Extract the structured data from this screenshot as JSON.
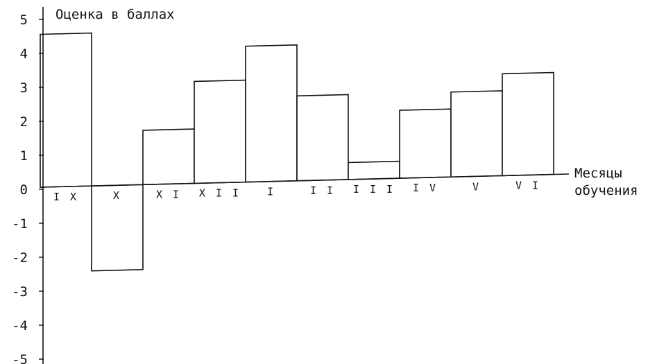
{
  "chart_data": {
    "type": "bar",
    "ylabel": "Оценка в баллах",
    "xlabel_lines": [
      "Месяцы",
      "обучения"
    ],
    "ylim": [
      -5,
      5
    ],
    "yticks": [
      5,
      4,
      3,
      2,
      1,
      0,
      -1,
      -2,
      -3,
      -4,
      -5
    ],
    "ytick_labels": [
      "5",
      "4",
      "3",
      "2",
      "1",
      "0",
      "-1",
      "-2",
      "-3",
      "-4",
      "-5"
    ],
    "categories": [
      "IX",
      "X",
      "XI",
      "XII",
      "I",
      "II",
      "III",
      "IV",
      "V",
      "VI"
    ],
    "category_labels": [
      "I X",
      "X",
      "X I",
      "X I I",
      "I",
      "I I",
      "I I I",
      "I V",
      "V",
      "V I"
    ],
    "values": [
      4.5,
      -2.5,
      1.6,
      3.0,
      4.0,
      2.5,
      0.5,
      2.0,
      2.5,
      3.0
    ],
    "grid": false,
    "legend": "none"
  }
}
